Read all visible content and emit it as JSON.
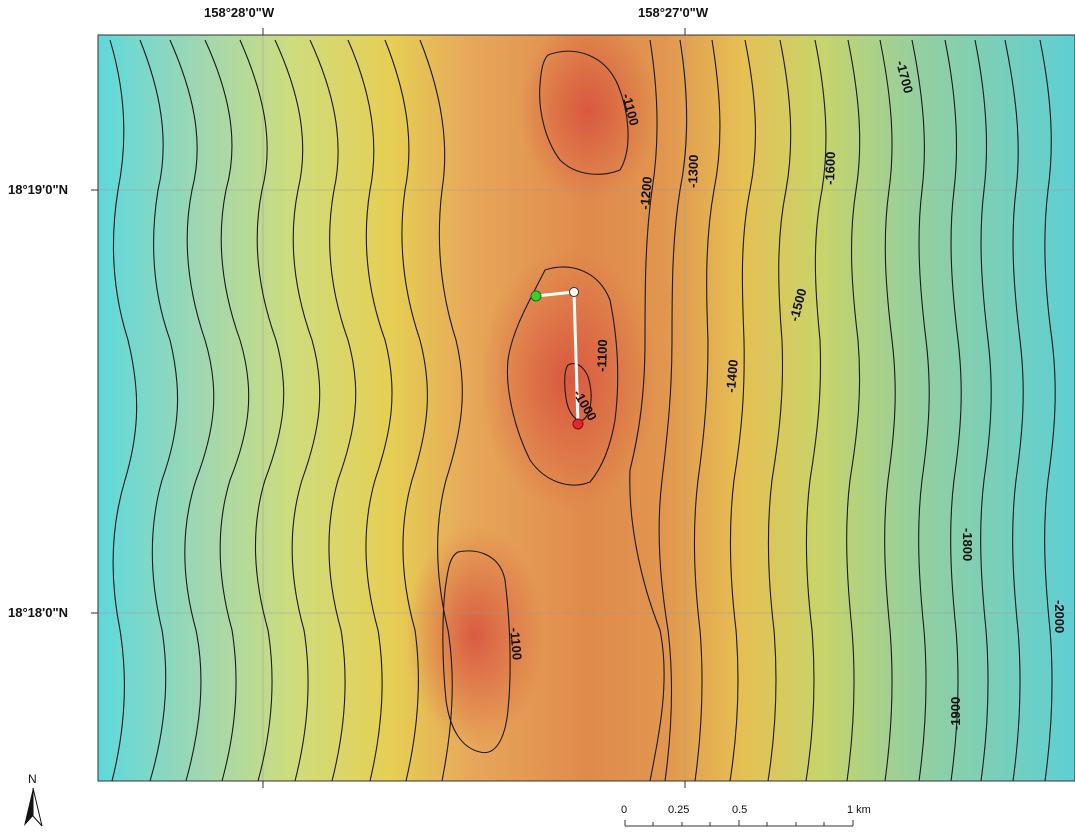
{
  "map": {
    "lon_labels": [
      "158°28'0\"W",
      "158°27'0\"W"
    ],
    "lat_labels": [
      "18°19'0\"N",
      "18°18'0\"N"
    ],
    "contour_labels": [
      "-1100",
      "-1200",
      "-1300",
      "-1600",
      "-1700",
      "-1100",
      "-1000",
      "-1400",
      "-1500",
      "-1800",
      "-2000",
      "-1900",
      "-1100"
    ],
    "colors": {
      "deep": "#6fd6d8",
      "mid_green": "#b7d887",
      "yellow": "#e8d14f",
      "orange": "#e09a4b",
      "peak": "#d8573f",
      "contour": "#1a1a1a",
      "track": "#ffffff",
      "start_marker": "#3ccf2f",
      "end_marker": "#e8262b"
    }
  },
  "scale_bar": {
    "labels": [
      "0",
      "0.25",
      "0.5",
      "1 km"
    ]
  },
  "north_arrow": {
    "label": "N",
    "icon": "north-arrow-icon"
  }
}
